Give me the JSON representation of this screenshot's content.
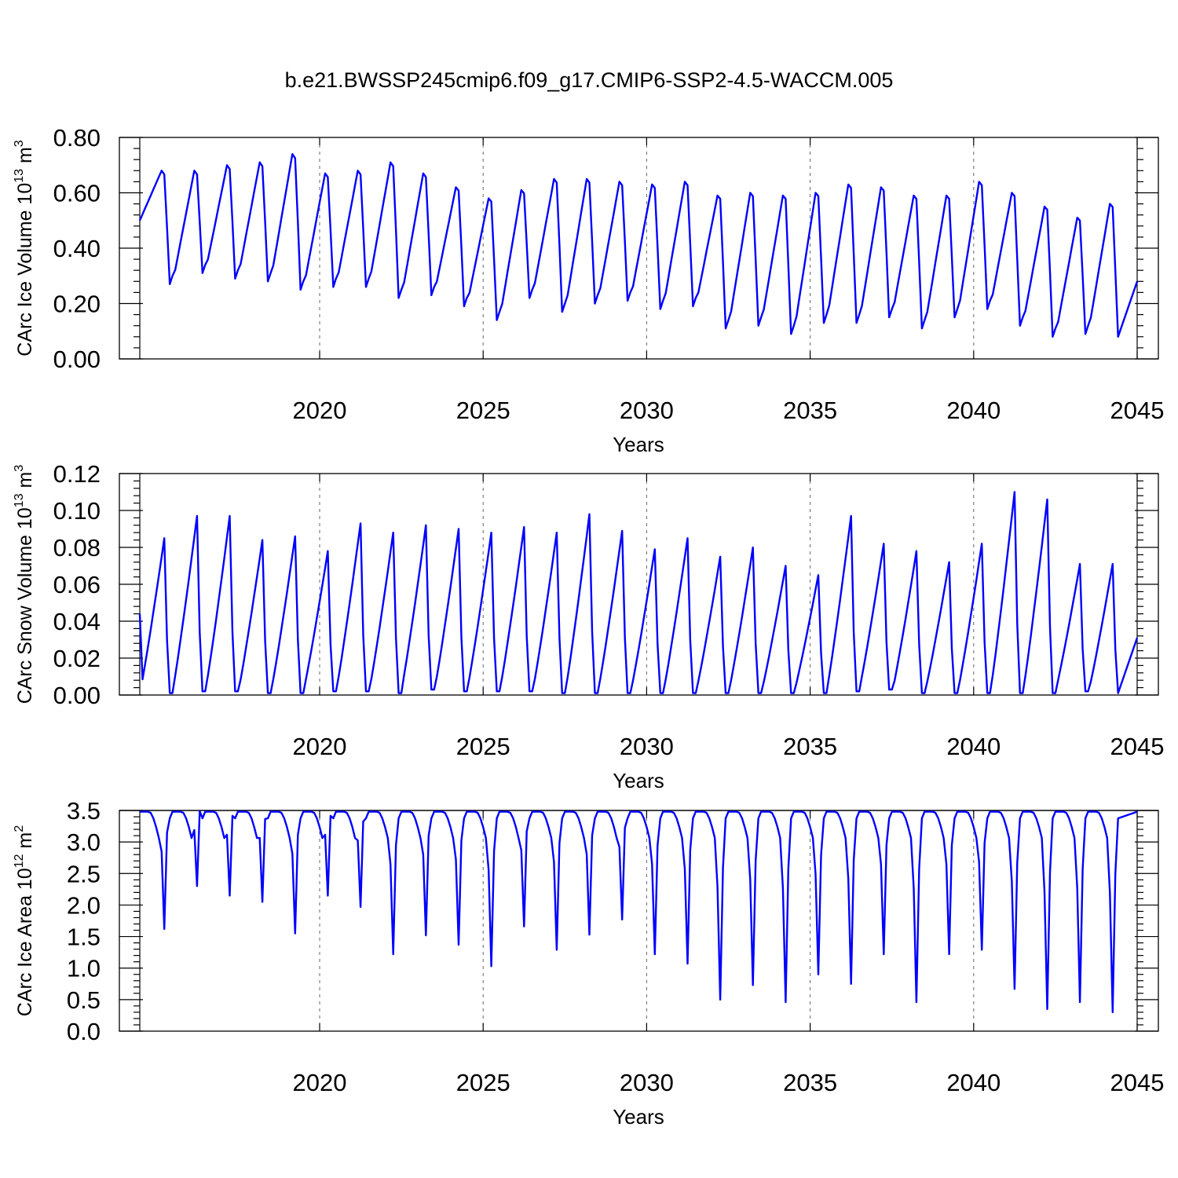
{
  "title": "b.e21.BWSSP245cmip6.f09_g17.CMIP6-SSP2-4.5-WACCM.005",
  "chart_data": [
    {
      "type": "line",
      "name": "ice-volume",
      "ylabel": "CArc Ice Volume 10",
      "ylabel_exp": "13",
      "ylabel_unit": " m",
      "ylabel_unit_exp": "3",
      "xlabel": "Years",
      "xlim": [
        2014.5,
        2045.0
      ],
      "ylim": [
        0.0,
        0.8
      ],
      "xticks": [
        "2020",
        "2025",
        "2030",
        "2035",
        "2040",
        "2045"
      ],
      "yticks": [
        "0.00",
        "0.20",
        "0.40",
        "0.60",
        "0.80"
      ],
      "ytick_values": [
        0.0,
        0.2,
        0.4,
        0.6,
        0.8
      ],
      "ref_line": null,
      "series_color": "#0000ff",
      "x_start": 2014.5,
      "years": [
        "2015",
        "2016",
        "2017",
        "2018",
        "2019",
        "2020",
        "2021",
        "2022",
        "2023",
        "2024",
        "2025",
        "2026",
        "2027",
        "2028",
        "2029",
        "2030",
        "2031",
        "2032",
        "2033",
        "2034",
        "2035",
        "2036",
        "2037",
        "2038",
        "2039",
        "2040",
        "2041",
        "2042",
        "2043",
        "2044"
      ],
      "annual_max": [
        0.68,
        0.68,
        0.7,
        0.71,
        0.74,
        0.67,
        0.68,
        0.71,
        0.67,
        0.62,
        0.58,
        0.61,
        0.65,
        0.65,
        0.64,
        0.63,
        0.64,
        0.59,
        0.6,
        0.59,
        0.6,
        0.63,
        0.62,
        0.59,
        0.59,
        0.64,
        0.6,
        0.55,
        0.51,
        0.56
      ],
      "annual_min": [
        0.27,
        0.31,
        0.29,
        0.28,
        0.25,
        0.26,
        0.26,
        0.22,
        0.23,
        0.19,
        0.14,
        0.22,
        0.17,
        0.2,
        0.21,
        0.18,
        0.19,
        0.11,
        0.12,
        0.09,
        0.13,
        0.13,
        0.15,
        0.11,
        0.15,
        0.18,
        0.12,
        0.08,
        0.09,
        0.08
      ],
      "start_value": 0.5,
      "end_value": 0.28
    },
    {
      "type": "line",
      "name": "snow-volume",
      "ylabel": "CArc Snow Volume 10",
      "ylabel_exp": "13",
      "ylabel_unit": " m",
      "ylabel_unit_exp": "3",
      "xlabel": "Years",
      "xlim": [
        2014.5,
        2045.0
      ],
      "ylim": [
        0.0,
        0.12
      ],
      "xticks": [
        "2020",
        "2025",
        "2030",
        "2035",
        "2040",
        "2045"
      ],
      "yticks": [
        "0.00",
        "0.02",
        "0.04",
        "0.06",
        "0.08",
        "0.10",
        "0.12"
      ],
      "ytick_values": [
        0.0,
        0.02,
        0.04,
        0.06,
        0.08,
        0.1,
        0.12
      ],
      "ref_line": null,
      "series_color": "#0000ff",
      "x_start": 2014.5,
      "years": [
        "2015",
        "2016",
        "2017",
        "2018",
        "2019",
        "2020",
        "2021",
        "2022",
        "2023",
        "2024",
        "2025",
        "2026",
        "2027",
        "2028",
        "2029",
        "2030",
        "2031",
        "2032",
        "2033",
        "2034",
        "2035",
        "2036",
        "2037",
        "2038",
        "2039",
        "2040",
        "2041",
        "2042",
        "2043",
        "2044"
      ],
      "annual_max": [
        0.085,
        0.097,
        0.097,
        0.084,
        0.086,
        0.078,
        0.093,
        0.088,
        0.092,
        0.09,
        0.088,
        0.091,
        0.088,
        0.098,
        0.089,
        0.079,
        0.085,
        0.075,
        0.08,
        0.07,
        0.065,
        0.097,
        0.082,
        0.078,
        0.072,
        0.082,
        0.11,
        0.106,
        0.071,
        0.071
      ],
      "annual_min": [
        0.001,
        0.002,
        0.002,
        0.001,
        0.001,
        0.002,
        0.002,
        0.001,
        0.003,
        0.002,
        0.002,
        0.002,
        0.001,
        0.001,
        0.001,
        0.001,
        0.001,
        0.001,
        0.001,
        0.001,
        0.001,
        0.002,
        0.003,
        0.001,
        0.001,
        0.001,
        0.001,
        0.001,
        0.002,
        0.001
      ],
      "start_value": 0.044,
      "end_value": 0.031
    },
    {
      "type": "line",
      "name": "ice-area",
      "ylabel": "CArc Ice Area 10",
      "ylabel_exp": "12",
      "ylabel_unit": " m",
      "ylabel_unit_exp": "2",
      "xlabel": "Years",
      "xlim": [
        2014.5,
        2045.0
      ],
      "ylim": [
        0.0,
        3.5
      ],
      "xticks": [
        "2020",
        "2025",
        "2030",
        "2035",
        "2040",
        "2045"
      ],
      "yticks": [
        "0.0",
        "0.5",
        "1.0",
        "1.5",
        "2.0",
        "2.5",
        "3.0",
        "3.5"
      ],
      "ytick_values": [
        0.0,
        0.5,
        1.0,
        1.5,
        2.0,
        2.5,
        3.0,
        3.5
      ],
      "ref_line": 3.5,
      "series_color": "#0000ff",
      "x_start": 2014.5,
      "years": [
        "2015",
        "2016",
        "2017",
        "2018",
        "2019",
        "2020",
        "2021",
        "2022",
        "2023",
        "2024",
        "2025",
        "2026",
        "2027",
        "2028",
        "2029",
        "2030",
        "2031",
        "2032",
        "2033",
        "2034",
        "2035",
        "2036",
        "2037",
        "2038",
        "2039",
        "2040",
        "2041",
        "2042",
        "2043",
        "2044"
      ],
      "annual_max": [
        3.48,
        3.48,
        3.48,
        3.48,
        3.48,
        3.48,
        3.48,
        3.48,
        3.48,
        3.48,
        3.48,
        3.48,
        3.48,
        3.48,
        3.48,
        3.48,
        3.48,
        3.48,
        3.48,
        3.48,
        3.48,
        3.48,
        3.48,
        3.48,
        3.48,
        3.48,
        3.48,
        3.48,
        3.48,
        3.48
      ],
      "annual_min": [
        1.62,
        2.3,
        2.15,
        2.05,
        1.55,
        2.15,
        1.97,
        1.22,
        1.52,
        1.37,
        1.03,
        1.66,
        1.29,
        1.53,
        1.77,
        1.22,
        1.07,
        0.5,
        0.73,
        0.46,
        0.9,
        0.75,
        1.22,
        0.46,
        1.22,
        1.29,
        0.67,
        0.35,
        0.46,
        0.3
      ],
      "start_value": 3.48,
      "end_value": 3.48
    }
  ]
}
